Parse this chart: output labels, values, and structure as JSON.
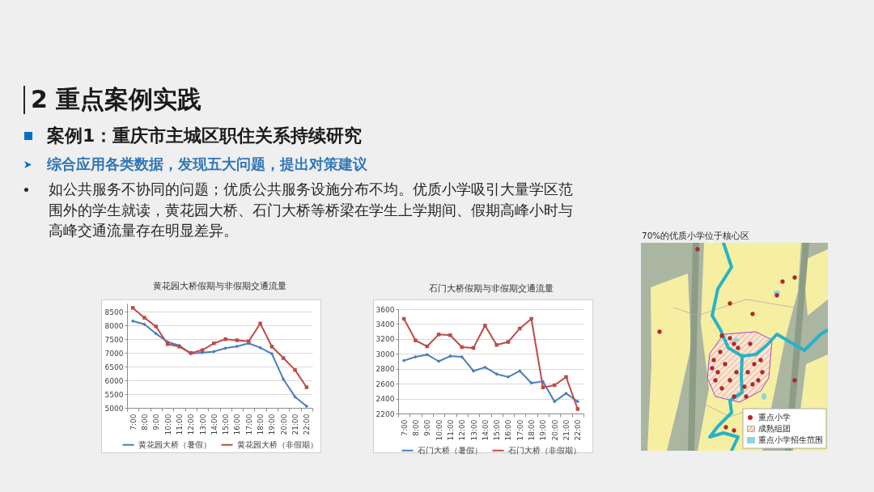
{
  "chart_data": [
    {
      "type": "other",
      "title": "2 重点案例实践",
      "subtitle": "案例1：重庆市主城区职住关系持续研究",
      "annotations": [
        "综合应用各类数据，发现五大问题，提出对策建议",
        "如公共服务不协同的问题；优质公共服务设施分布不均。优质小学吸引大量学区范围外的学生就读，黄花园大桥、石门大桥等桥梁在学生上学期间、假期高峰小时与高峰交通流量存在明显差异。"
      ]
    },
    {
      "type": "line",
      "title": "黄花园大桥假期与非假期交通流量",
      "categories": [
        "7:00",
        "8:00",
        "9:00",
        "10:00",
        "11:00",
        "12:00",
        "13:00",
        "14:00",
        "15:00",
        "16:00",
        "17:00",
        "18:00",
        "19:00",
        "20:00",
        "21:00",
        "22:00"
      ],
      "series": [
        {
          "name": "黄花园大桥（暑假）",
          "color": "#4a7ebb",
          "marker": "diamond",
          "values": [
            8160,
            8040,
            7700,
            7400,
            7270,
            6970,
            7010,
            7050,
            7170,
            7240,
            7350,
            7190,
            6970,
            6040,
            5400,
            5060
          ]
        },
        {
          "name": "黄花园大桥（非假期）",
          "color": "#be4b48",
          "marker": "square",
          "values": [
            8640,
            8280,
            7960,
            7320,
            7230,
            7000,
            7100,
            7350,
            7500,
            7460,
            7420,
            8070,
            7230,
            6810,
            6380,
            5750
          ]
        }
      ],
      "ylim": [
        5000,
        8800
      ],
      "yticks": [
        5000,
        5500,
        6000,
        6500,
        7000,
        7500,
        8000,
        8500
      ],
      "grid": "y",
      "legend": "bottom"
    },
    {
      "type": "line",
      "title": "石门大桥假期与非假期交通流量",
      "categories": [
        "7:00",
        "8:00",
        "9:00",
        "10:00",
        "11:00",
        "12:00",
        "13:00",
        "14:00",
        "15:00",
        "16:00",
        "17:00",
        "18:00",
        "19:00",
        "20:00",
        "21:00",
        "22:00"
      ],
      "series": [
        {
          "name": "石门大桥（暑假）",
          "color": "#4a7ebb",
          "marker": "diamond",
          "values": [
            2910,
            2960,
            2990,
            2900,
            2970,
            2960,
            2770,
            2820,
            2730,
            2690,
            2770,
            2610,
            2630,
            2360,
            2470,
            2360
          ]
        },
        {
          "name": "石门大桥（非假期）",
          "color": "#be4b48",
          "marker": "square",
          "values": [
            3470,
            3180,
            3100,
            3260,
            3250,
            3090,
            3080,
            3380,
            3120,
            3160,
            3340,
            3470,
            2550,
            2580,
            2690,
            2260
          ]
        }
      ],
      "ylim": [
        2200,
        3600
      ],
      "yticks": [
        2200,
        2400,
        2600,
        2800,
        3000,
        3200,
        3400,
        3600
      ],
      "grid": "y",
      "legend": "bottom"
    },
    {
      "type": "other",
      "title": "70%的优质小学位于核心区",
      "annotations": [
        "重点小学",
        "成熟组团",
        "重点小学招生范围"
      ]
    }
  ]
}
